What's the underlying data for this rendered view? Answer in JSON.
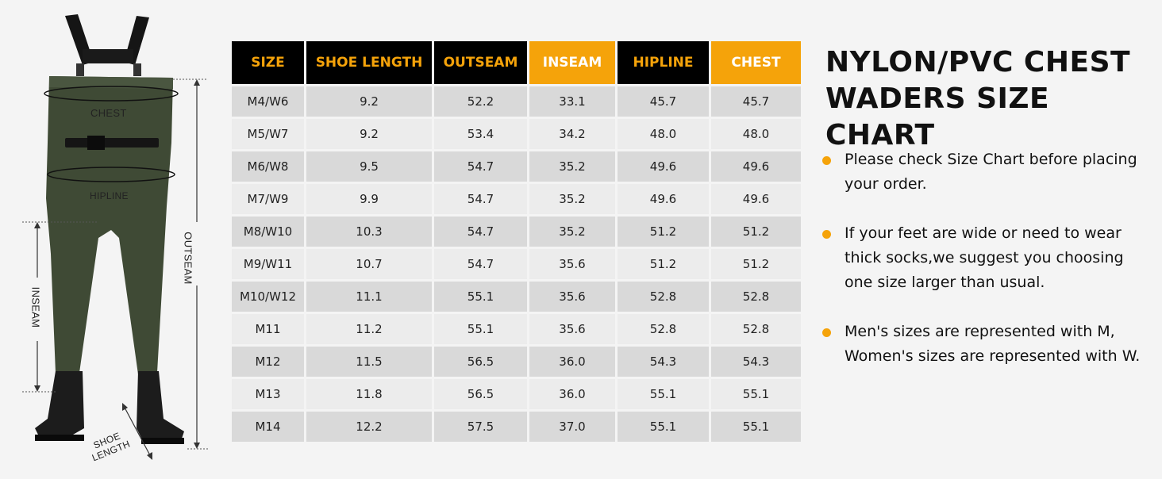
{
  "illustration": {
    "labels": {
      "chest": "CHEST",
      "hipline": "HIPLINE",
      "outseam": "OUTSEAM",
      "inseam": "INSEAM",
      "shoe_line1": "SHOE",
      "shoe_line2": "LENGTH"
    },
    "wader_color": "#3f4a35",
    "boot_color": "#1c1c1c"
  },
  "table": {
    "headers": [
      "SIZE",
      "SHOE LENGTH",
      "OUTSEAM",
      "INSEAM",
      "HIPLINE",
      "CHEST"
    ],
    "header_styles": [
      "dark",
      "dark",
      "dark",
      "gold",
      "dark",
      "gold"
    ],
    "rows": [
      [
        "M4/W6",
        "9.2",
        "52.2",
        "33.1",
        "45.7",
        "45.7"
      ],
      [
        "M5/W7",
        "9.2",
        "53.4",
        "34.2",
        "48.0",
        "48.0"
      ],
      [
        "M6/W8",
        "9.5",
        "54.7",
        "35.2",
        "49.6",
        "49.6"
      ],
      [
        "M7/W9",
        "9.9",
        "54.7",
        "35.2",
        "49.6",
        "49.6"
      ],
      [
        "M8/W10",
        "10.3",
        "54.7",
        "35.2",
        "51.2",
        "51.2"
      ],
      [
        "M9/W11",
        "10.7",
        "54.7",
        "35.6",
        "51.2",
        "51.2"
      ],
      [
        "M10/W12",
        "11.1",
        "55.1",
        "35.6",
        "52.8",
        "52.8"
      ],
      [
        "M11",
        "11.2",
        "55.1",
        "35.6",
        "52.8",
        "52.8"
      ],
      [
        "M12",
        "11.5",
        "56.5",
        "36.0",
        "54.3",
        "54.3"
      ],
      [
        "M13",
        "11.8",
        "56.5",
        "36.0",
        "55.1",
        "55.1"
      ],
      [
        "M14",
        "12.2",
        "57.5",
        "37.0",
        "55.1",
        "55.1"
      ]
    ]
  },
  "title": {
    "line1": "NYLON/PVC CHEST",
    "line2": "WADERS SIZE CHART"
  },
  "notes": [
    "Please check Size Chart before placing your order.",
    "If your feet are wide or need to wear thick socks,we suggest you choosing one size larger than usual.",
    "Men's sizes are represented with M, Women's sizes are represented with W."
  ],
  "colors": {
    "accent": "#f5a30a",
    "header_dark": "#000000",
    "row_dark": "#d9d9d9",
    "row_light": "#ececec",
    "background": "#f4f4f4"
  }
}
